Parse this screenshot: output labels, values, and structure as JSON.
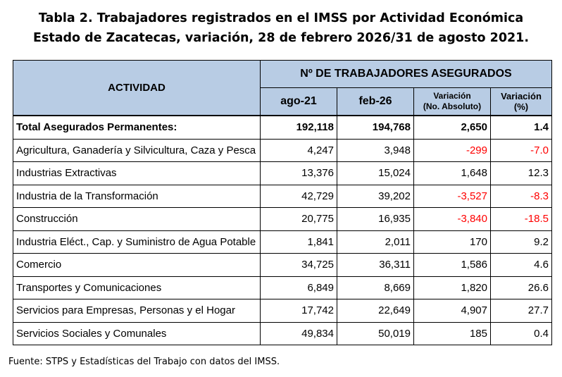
{
  "title": {
    "line1": "Tabla 2. Trabajadores registrados en el IMSS por Actividad Económica",
    "line2": "Estado de Zacatecas, variación, 28 de febrero 2026/31 de agosto 2021."
  },
  "header": {
    "actividad": "ACTIVIDAD",
    "group": "Nº DE TRABAJADORES ASEGURADOS",
    "c1": "ago-21",
    "c2": "feb-26",
    "c3a": "Variación",
    "c3b": "(No. Absoluto)",
    "c4a": "Variación",
    "c4b": "(%)"
  },
  "rows": [
    {
      "name": "Total Asegurados Permanentes:",
      "a": "192,118",
      "b": "194,768",
      "v": "2,650",
      "p": "1.4"
    },
    {
      "name": "Agricultura, Ganadería y Silvicultura, Caza y Pesca",
      "a": "4,247",
      "b": "3,948",
      "v": "-299",
      "p": "-7.0"
    },
    {
      "name": "Industrias Extractivas",
      "a": "13,376",
      "b": "15,024",
      "v": "1,648",
      "p": "12.3"
    },
    {
      "name": "Industria de la Transformación",
      "a": "42,729",
      "b": "39,202",
      "v": "-3,527",
      "p": "-8.3"
    },
    {
      "name": "Construcción",
      "a": "20,775",
      "b": "16,935",
      "v": "-3,840",
      "p": "-18.5"
    },
    {
      "name": "Industria Eléct., Cap. y Suministro de Agua Potable",
      "a": "1,841",
      "b": "2,011",
      "v": "170",
      "p": "9.2"
    },
    {
      "name": "Comercio",
      "a": "34,725",
      "b": "36,311",
      "v": "1,586",
      "p": "4.6"
    },
    {
      "name": "Transportes y Comunicaciones",
      "a": "6,849",
      "b": "8,669",
      "v": "1,820",
      "p": "26.6"
    },
    {
      "name": "Servicios para Empresas, Personas y el Hogar",
      "a": "17,742",
      "b": "22,649",
      "v": "4,907",
      "p": "27.7"
    },
    {
      "name": "Servicios Sociales y Comunales",
      "a": "49,834",
      "b": "50,019",
      "v": "185",
      "p": "0.4"
    }
  ],
  "source": "Fuente: STPS y Estadísticas del Trabajo con datos del IMSS.",
  "colors": {
    "header_bg": "#b8cce4",
    "negative": "#ff0000"
  }
}
